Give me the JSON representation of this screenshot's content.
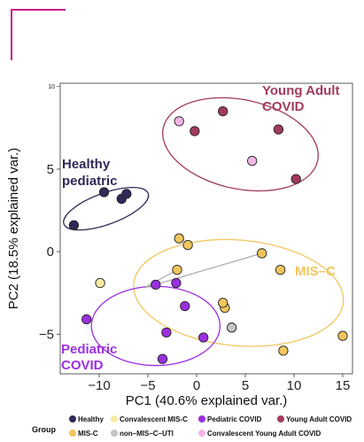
{
  "chart_data": {
    "type": "scatter",
    "title": "",
    "xlabel": "PC1 (40.6% explained var.)",
    "ylabel": "PC2 (18.5% explained var.)",
    "xlim": [
      -14,
      16
    ],
    "ylim": [
      -7.4,
      10.2
    ],
    "xticks": [
      -10,
      -5,
      0,
      5,
      10,
      15
    ],
    "yticks": [
      -5,
      0,
      5
    ],
    "top_tick_label": "10",
    "grid": false,
    "legend_position": "bottom",
    "legend_title": "Group",
    "group_colors": {
      "Healthy": "#2f2a58",
      "Convalescent MIS-C": "#f7eba4",
      "Pediatric COVID": "#9b2fe0",
      "Young Adult COVID": "#a33a5e",
      "MIS-C": "#f1c55c",
      "non-MIS-C-UTI": "#c5c5c5",
      "Convalescent Young Adult COVID": "#f4b4e8"
    },
    "legend_rows": [
      [
        "Healthy",
        "Convalescent MIS-C",
        "Pediatric COVID",
        "Young Adult COVID"
      ],
      [
        "MIS-C",
        "non-MIS-C-UTI",
        "Convalescent Young Adult COVID"
      ]
    ],
    "legend_labels": {
      "Healthy": "Healthy",
      "Convalescent MIS-C": "Convalescent MIS-C",
      "Pediatric COVID": "Pediatric COVID",
      "Young Adult COVID": "Young Adult COVID",
      "MIS-C": "MIS-C",
      "non-MIS-C-UTI": "non–MIS–C–UTI",
      "Convalescent Young Adult COVID": "Convalescent Young Adult  COVID"
    },
    "series": [
      {
        "name": "Healthy",
        "points": [
          [
            -12.6,
            1.6
          ],
          [
            -9.5,
            3.6
          ],
          [
            -7.7,
            3.2
          ],
          [
            -7.2,
            3.5
          ]
        ]
      },
      {
        "name": "Young Adult COVID",
        "points": [
          [
            2.7,
            8.5
          ],
          [
            -0.2,
            7.3
          ],
          [
            8.4,
            7.4
          ],
          [
            10.2,
            4.4
          ]
        ]
      },
      {
        "name": "Convalescent Young Adult COVID",
        "points": [
          [
            -1.8,
            7.9
          ],
          [
            5.7,
            5.5
          ]
        ]
      },
      {
        "name": "MIS-C",
        "points": [
          [
            -1.8,
            0.8
          ],
          [
            -0.9,
            0.4
          ],
          [
            -2.0,
            -1.1
          ],
          [
            6.7,
            -0.1
          ],
          [
            8.6,
            -1.1
          ],
          [
            2.9,
            -3.4
          ],
          [
            2.7,
            -3.1
          ],
          [
            8.9,
            -6.0
          ],
          [
            15.0,
            -5.1
          ]
        ]
      },
      {
        "name": "Convalescent MIS-C",
        "points": [
          [
            -9.9,
            -1.9
          ]
        ]
      },
      {
        "name": "Pediatric COVID",
        "points": [
          [
            -4.2,
            -2.0
          ],
          [
            -2.1,
            -1.9
          ],
          [
            -1.2,
            -3.3
          ],
          [
            -11.3,
            -4.1
          ],
          [
            0.7,
            -5.2
          ],
          [
            -3.1,
            -4.9
          ],
          [
            -3.5,
            -6.5
          ]
        ]
      },
      {
        "name": "non-MIS-C-UTI",
        "points": [
          [
            3.6,
            -4.6
          ]
        ]
      }
    ],
    "connectors": [
      {
        "group": "MIS-C",
        "from": [
          -5.4,
          -2.2
        ],
        "to": [
          6.7,
          -0.1
        ]
      },
      {
        "group": "MIS-C",
        "from": [
          -5.4,
          -2.2
        ],
        "to": [
          -2.0,
          -1.1
        ]
      }
    ],
    "ellipses": [
      {
        "group": "Healthy",
        "cx": -9.3,
        "cy": 2.6,
        "rx": 4.6,
        "ry": 0.95,
        "angle_deg": 20
      },
      {
        "group": "Young Adult COVID",
        "cx": 4.5,
        "cy": 6.5,
        "rx": 8.1,
        "ry": 2.7,
        "angle_deg": -12
      },
      {
        "group": "MIS-C",
        "cx": 4.3,
        "cy": -2.5,
        "rx": 10.8,
        "ry": 3.2,
        "angle_deg": -5
      },
      {
        "group": "Pediatric COVID",
        "cx": -4.2,
        "cy": -4.5,
        "rx": 6.6,
        "ry": 2.4,
        "angle_deg": 0
      }
    ],
    "cluster_labels": [
      {
        "group": "Healthy",
        "lines": [
          "Healthy",
          "pediatric"
        ]
      },
      {
        "group": "Young Adult COVID",
        "lines": [
          "Young Adult",
          "COVID"
        ]
      },
      {
        "group": "MIS-C",
        "lines": [
          "MIS–C"
        ]
      },
      {
        "group": "Pediatric COVID",
        "lines": [
          "Pediatric",
          "COVID"
        ]
      }
    ]
  }
}
